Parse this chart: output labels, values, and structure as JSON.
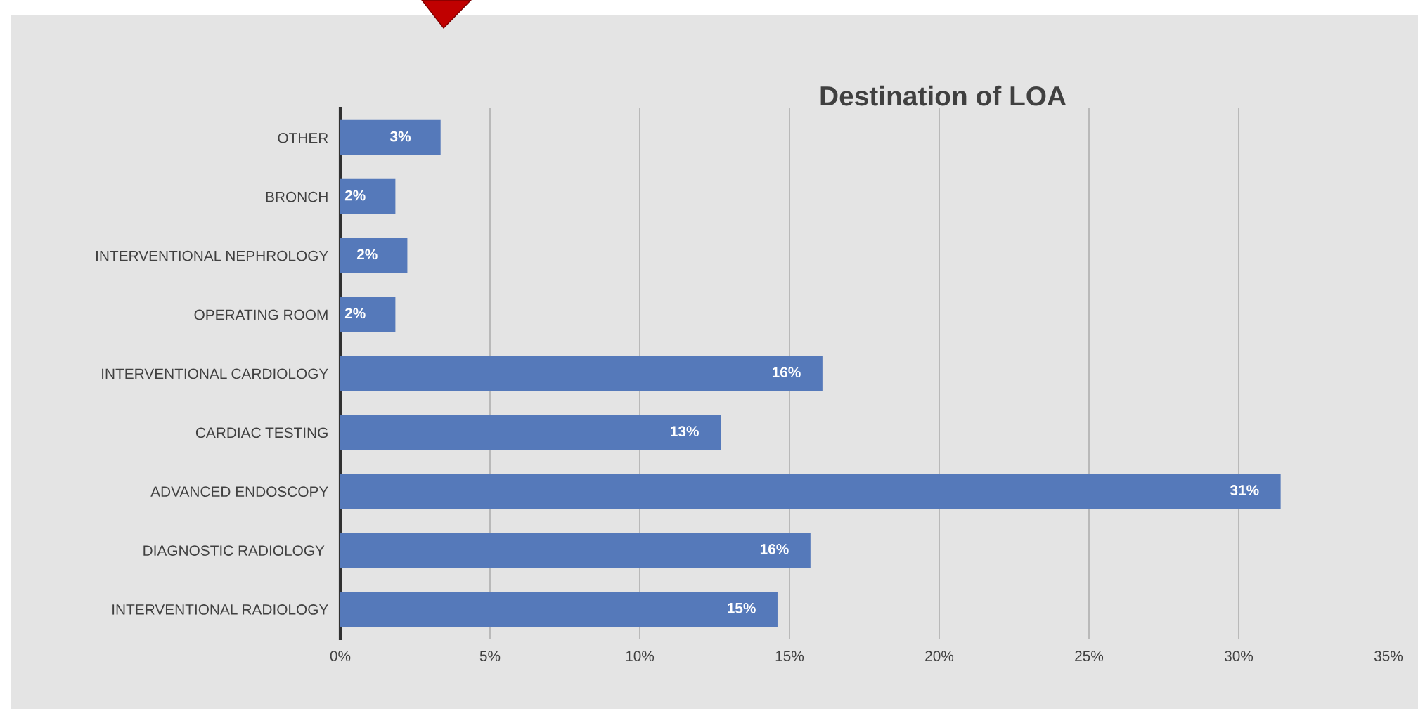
{
  "chart_data": {
    "type": "bar",
    "orientation": "horizontal",
    "title": "Destination of LOA",
    "categories": [
      "OTHER",
      "BRONCH",
      "INTERVENTIONAL NEPHROLOGY",
      "OPERATING ROOM",
      "INTERVENTIONAL CARDIOLOGY",
      "CARDIAC TESTING",
      "ADVANCED ENDOSCOPY",
      "DIAGNOSTIC RADIOLOGY ",
      "INTERVENTIONAL RADIOLOGY"
    ],
    "values": [
      3.35,
      1.84,
      2.24,
      1.84,
      16.1,
      12.7,
      31.4,
      15.7,
      14.6
    ],
    "value_labels": [
      "3%",
      "2%",
      "2%",
      "2%",
      "16%",
      "13%",
      "31%",
      "16%",
      "15%"
    ],
    "color": "#5579ba",
    "xlim": [
      0,
      35
    ],
    "xticks": [
      {
        "value": 0,
        "label": "0%"
      },
      {
        "value": 5,
        "label": "5%"
      },
      {
        "value": 10,
        "label": "10%"
      },
      {
        "value": 15,
        "label": "15%"
      },
      {
        "value": 20,
        "label": "20%"
      },
      {
        "value": 25,
        "label": "25%"
      },
      {
        "value": 30,
        "label": "30%"
      },
      {
        "value": 35,
        "label": "35%"
      }
    ],
    "grid": "x",
    "legend": false
  }
}
